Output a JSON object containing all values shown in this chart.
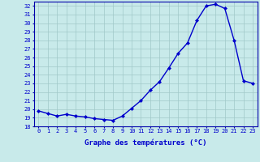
{
  "hours": [
    0,
    1,
    2,
    3,
    4,
    5,
    6,
    7,
    8,
    9,
    10,
    11,
    12,
    13,
    14,
    15,
    16,
    17,
    18,
    19,
    20,
    21,
    22,
    23
  ],
  "temps": [
    19.8,
    19.5,
    19.2,
    19.4,
    19.2,
    19.1,
    18.9,
    18.8,
    18.7,
    19.2,
    20.1,
    21.0,
    22.2,
    23.2,
    24.8,
    26.5,
    27.7,
    30.3,
    32.0,
    32.2,
    31.7,
    28.0,
    23.3,
    23.0
  ],
  "line_color": "#0000cc",
  "marker": "D",
  "marker_size": 2.0,
  "bg_color": "#c8eaea",
  "grid_color": "#a0c8c8",
  "xlabel": "Graphe des températures (°C)",
  "ylim": [
    18,
    32.5
  ],
  "yticks": [
    18,
    19,
    20,
    21,
    22,
    23,
    24,
    25,
    26,
    27,
    28,
    29,
    30,
    31,
    32
  ],
  "xlim": [
    -0.5,
    23.5
  ],
  "xticks": [
    0,
    1,
    2,
    3,
    4,
    5,
    6,
    7,
    8,
    9,
    10,
    11,
    12,
    13,
    14,
    15,
    16,
    17,
    18,
    19,
    20,
    21,
    22,
    23
  ],
  "tick_label_color": "#0000cc",
  "tick_label_size": 5.0,
  "xlabel_size": 6.5,
  "xlabel_color": "#0000cc",
  "spine_color": "#0000aa",
  "linewidth": 1.0
}
